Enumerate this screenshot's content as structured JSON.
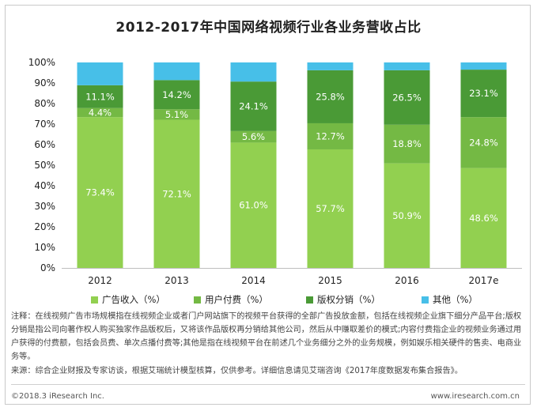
{
  "chart_data": {
    "type": "bar",
    "stacked": true,
    "percent": true,
    "title": "2012-2017年中国网络视频行业各业务营收占比",
    "categories": [
      "2012",
      "2013",
      "2014",
      "2015",
      "2016",
      "2017e"
    ],
    "series": [
      {
        "name": "广告收入（%）",
        "color": "#92d050",
        "values": [
          73.4,
          72.1,
          61.0,
          57.7,
          50.9,
          48.6
        ],
        "labels": [
          "73.4%",
          "72.1%",
          "61.0%",
          "57.7%",
          "50.9%",
          "48.6%"
        ]
      },
      {
        "name": "用户付费（%）",
        "color": "#74b944",
        "values": [
          4.4,
          5.1,
          5.6,
          12.7,
          18.8,
          24.8
        ],
        "labels": [
          "4.4%",
          "5.1%",
          "5.6%",
          "12.7%",
          "18.8%",
          "24.8%"
        ]
      },
      {
        "name": "版权分销（%）",
        "color": "#4a9a36",
        "values": [
          11.1,
          14.2,
          24.1,
          25.8,
          26.5,
          23.1
        ],
        "labels": [
          "11.1%",
          "14.2%",
          "24.1%",
          "25.8%",
          "26.5%",
          "23.1%"
        ]
      },
      {
        "name": "其他（%）",
        "color": "#47bfe8",
        "values": [
          11.1,
          8.6,
          9.3,
          3.8,
          3.8,
          3.5
        ],
        "labels": [
          "",
          "",
          "",
          "",
          "",
          ""
        ]
      }
    ],
    "ylim": [
      0,
      100
    ],
    "yticks": [
      "0%",
      "10%",
      "20%",
      "30%",
      "40%",
      "50%",
      "60%",
      "70%",
      "80%",
      "90%",
      "100%"
    ],
    "legend_position": "bottom"
  },
  "note": "注释：在线视频广告市场规模指在线视频企业或者门户网站旗下的视频平台获得的全部广告投放金额，包括在线视频企业旗下细分产品平台;版权分销是指公司向著作权人购买独家作品版权后，又将该作品版权再分销给其他公司，然后从中赚取差价的模式;内容付费指企业的视频业务通过用户获得的付费额，包括会员费、单次点播付费等;其他是指在线视频平台在前述几个业务细分之外的业务规模，例如娱乐相关硬件的售卖、电商业务等。",
  "source": "来源：综合企业财报及专家访谈，根据艾瑞统计模型核算，仅供参考。详细信息请见艾瑞咨询《2017年度数据发布集合报告》。",
  "footer": {
    "copyright": "©2018.3 iResearch Inc.",
    "website": "www.iresearch.com.cn"
  }
}
